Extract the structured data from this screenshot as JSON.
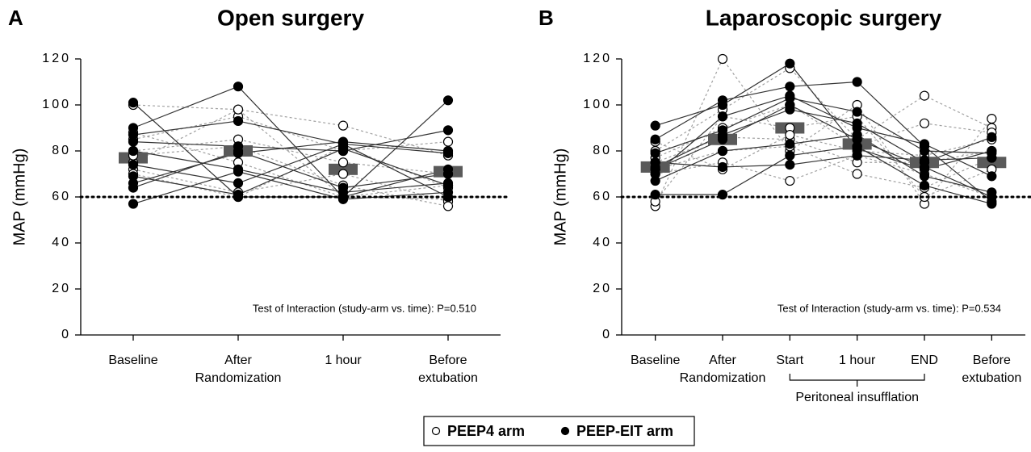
{
  "chart_data": [
    {
      "type": "line",
      "panel": "A",
      "title": "Open surgery",
      "ylabel": "MAP (mmHg)",
      "categories": [
        [
          "Baseline"
        ],
        [
          "After",
          "Randomization"
        ],
        [
          "1 hour"
        ],
        [
          "Before",
          "extubation"
        ]
      ],
      "ylim": [
        0,
        120
      ],
      "yticks": [
        0,
        20,
        40,
        60,
        80,
        100,
        120
      ],
      "reference_line": 60,
      "annotation": "Test of Interaction (study-arm vs. time): P=0.510",
      "means": [
        77,
        80,
        72,
        71
      ],
      "series": [
        {
          "arm": 0,
          "values": [
            100,
            98,
            60,
            59
          ]
        },
        {
          "arm": 0,
          "values": [
            85,
            95,
            80,
            84
          ]
        },
        {
          "arm": 0,
          "values": [
            80,
            85,
            75,
            70
          ]
        },
        {
          "arm": 0,
          "values": [
            75,
            98,
            91,
            78
          ]
        },
        {
          "arm": 0,
          "values": [
            72,
            62,
            70,
            58
          ]
        },
        {
          "arm": 0,
          "values": [
            70,
            60,
            82,
            64
          ]
        },
        {
          "arm": 0,
          "values": [
            88,
            75,
            60,
            65
          ]
        },
        {
          "arm": 0,
          "values": [
            78,
            82,
            65,
            56
          ]
        },
        {
          "arm": 1,
          "values": [
            101,
            60,
            60,
            102
          ]
        },
        {
          "arm": 1,
          "values": [
            90,
            108,
            60,
            72
          ]
        },
        {
          "arm": 1,
          "values": [
            87,
            93,
            83,
            60
          ]
        },
        {
          "arm": 1,
          "values": [
            84,
            82,
            80,
            89
          ]
        },
        {
          "arm": 1,
          "values": [
            80,
            72,
            62,
            66
          ]
        },
        {
          "arm": 1,
          "values": [
            74,
            66,
            83,
            79
          ]
        },
        {
          "arm": 1,
          "values": [
            69,
            61,
            81,
            65
          ]
        },
        {
          "arm": 1,
          "values": [
            64,
            80,
            64,
            70
          ]
        },
        {
          "arm": 1,
          "values": [
            57,
            71,
            59,
            62
          ]
        },
        {
          "arm": 1,
          "values": [
            66,
            79,
            84,
            80
          ]
        }
      ]
    },
    {
      "type": "line",
      "panel": "B",
      "title": "Laparoscopic surgery",
      "ylabel": "MAP (mmHg)",
      "categories": [
        [
          "Baseline"
        ],
        [
          "After",
          "Randomization"
        ],
        [
          "Start"
        ],
        [
          "1 hour"
        ],
        [
          "END"
        ],
        [
          "Before",
          "extubation"
        ]
      ],
      "ylim": [
        0,
        120
      ],
      "yticks": [
        0,
        20,
        40,
        60,
        80,
        100,
        120
      ],
      "reference_line": 60,
      "annotation": "Test of Interaction (study-arm vs. time): P=0.534",
      "bracket_label": "Peritoneal insufflation",
      "means": [
        73,
        85,
        90,
        83,
        75,
        75
      ],
      "series": [
        {
          "arm": 0,
          "values": [
            56,
            120,
            80,
            100,
            57,
            94
          ]
        },
        {
          "arm": 0,
          "values": [
            80,
            98,
            116,
            85,
            104,
            90
          ]
        },
        {
          "arm": 0,
          "values": [
            77,
            90,
            100,
            82,
            92,
            88
          ]
        },
        {
          "arm": 0,
          "values": [
            75,
            86,
            85,
            75,
            75,
            80
          ]
        },
        {
          "arm": 0,
          "values": [
            72,
            80,
            82,
            70,
            64,
            77
          ]
        },
        {
          "arm": 0,
          "values": [
            70,
            75,
            67,
            78,
            70,
            60
          ]
        },
        {
          "arm": 0,
          "values": [
            58,
            95,
            90,
            95,
            60,
            72
          ]
        },
        {
          "arm": 0,
          "values": [
            84,
            72,
            87,
            80,
            78,
            85
          ]
        },
        {
          "arm": 1,
          "values": [
            91,
            100,
            118,
            81,
            72,
            80
          ]
        },
        {
          "arm": 1,
          "values": [
            85,
            102,
            108,
            110,
            82,
            58
          ]
        },
        {
          "arm": 1,
          "values": [
            79,
            89,
            103,
            97,
            80,
            79
          ]
        },
        {
          "arm": 1,
          "values": [
            73,
            87,
            98,
            92,
            75,
            86
          ]
        },
        {
          "arm": 1,
          "values": [
            67,
            80,
            83,
            87,
            69,
            62
          ]
        },
        {
          "arm": 1,
          "values": [
            61,
            61,
            78,
            82,
            65,
            57
          ]
        },
        {
          "arm": 1,
          "values": [
            70,
            95,
            104,
            90,
            83,
            69
          ]
        },
        {
          "arm": 1,
          "values": [
            75,
            73,
            74,
            78,
            76,
            77
          ]
        },
        {
          "arm": 1,
          "values": [
            72,
            85,
            100,
            85,
            73,
            60
          ]
        }
      ]
    }
  ],
  "arms": [
    {
      "name": "PEEP4 arm",
      "marker": "open",
      "line_style": "dotted",
      "line_color": "#a0a0a0"
    },
    {
      "name": "PEEP-EIT arm",
      "marker": "filled",
      "line_style": "solid",
      "line_color": "#333333"
    }
  ],
  "mean_color": "#5a5a5a"
}
